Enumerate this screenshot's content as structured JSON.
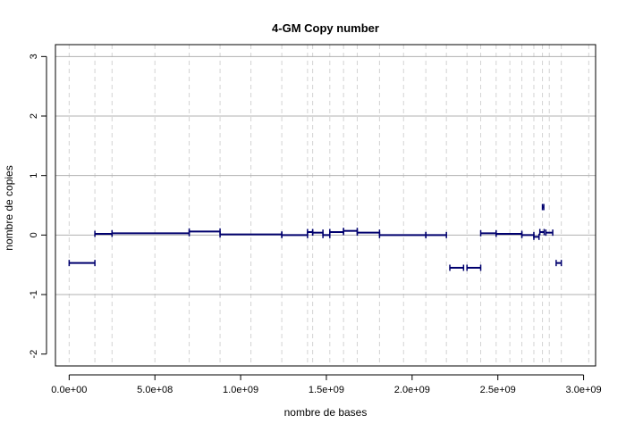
{
  "chart_data": {
    "type": "segments",
    "title": "4-GM Copy number",
    "xlabel": "nombre de bases",
    "ylabel": "nombre de copies",
    "xlim": [
      -80000000,
      3070000000
    ],
    "ylim": [
      -2.2,
      3.2
    ],
    "x_ticks": [
      0,
      500000000,
      1000000000,
      1500000000,
      2000000000,
      2500000000,
      3000000000
    ],
    "x_tick_labels": [
      "0.0e+00",
      "5.0e+08",
      "1.0e+09",
      "1.5e+09",
      "2.0e+09",
      "2.5e+09",
      "3.0e+09"
    ],
    "y_ticks": [
      -2,
      -1,
      0,
      1,
      2,
      3
    ],
    "y_tick_labels": [
      "-2",
      "-1",
      "0",
      "1",
      "2",
      "3"
    ],
    "grid": {
      "horizontal": [
        -1,
        0,
        1,
        2,
        3
      ],
      "vertical_dashed": [
        0,
        150000000,
        250000000,
        500000000,
        700000000,
        880000000,
        1060000000,
        1240000000,
        1390000000,
        1420000000,
        1520000000,
        1600000000,
        1680000000,
        1810000000,
        1950000000,
        2080000000,
        2200000000,
        2320000000,
        2400000000,
        2490000000,
        2570000000,
        2640000000,
        2710000000,
        2760000000,
        2800000000,
        2870000000,
        3030000000
      ]
    },
    "color": "#00006e",
    "segments": [
      {
        "x0": 0,
        "x1": 150000000,
        "y": -0.47
      },
      {
        "x0": 150000000,
        "x1": 250000000,
        "y": 0.02
      },
      {
        "x0": 250000000,
        "x1": 700000000,
        "y": 0.03
      },
      {
        "x0": 700000000,
        "x1": 880000000,
        "y": 0.06
      },
      {
        "x0": 880000000,
        "x1": 1240000000,
        "y": 0.01
      },
      {
        "x0": 1240000000,
        "x1": 1390000000,
        "y": 0.0
      },
      {
        "x0": 1390000000,
        "x1": 1420000000,
        "y": 0.05
      },
      {
        "x0": 1420000000,
        "x1": 1480000000,
        "y": 0.04
      },
      {
        "x0": 1480000000,
        "x1": 1520000000,
        "y": 0.0
      },
      {
        "x0": 1520000000,
        "x1": 1600000000,
        "y": 0.05
      },
      {
        "x0": 1600000000,
        "x1": 1680000000,
        "y": 0.07
      },
      {
        "x0": 1680000000,
        "x1": 1810000000,
        "y": 0.04
      },
      {
        "x0": 1810000000,
        "x1": 2080000000,
        "y": 0.0
      },
      {
        "x0": 2080000000,
        "x1": 2200000000,
        "y": 0.0
      },
      {
        "x0": 2220000000,
        "x1": 2300000000,
        "y": -0.55
      },
      {
        "x0": 2320000000,
        "x1": 2400000000,
        "y": -0.55
      },
      {
        "x0": 2400000000,
        "x1": 2490000000,
        "y": 0.03
      },
      {
        "x0": 2490000000,
        "x1": 2640000000,
        "y": 0.02
      },
      {
        "x0": 2640000000,
        "x1": 2710000000,
        "y": 0.0
      },
      {
        "x0": 2710000000,
        "x1": 2740000000,
        "y": -0.03
      },
      {
        "x0": 2745000000,
        "x1": 2770000000,
        "y": 0.05
      },
      {
        "x0": 2760000000,
        "x1": 2768000000,
        "y": 0.47
      },
      {
        "x0": 2780000000,
        "x1": 2820000000,
        "y": 0.04
      },
      {
        "x0": 2840000000,
        "x1": 2870000000,
        "y": -0.47
      }
    ]
  }
}
